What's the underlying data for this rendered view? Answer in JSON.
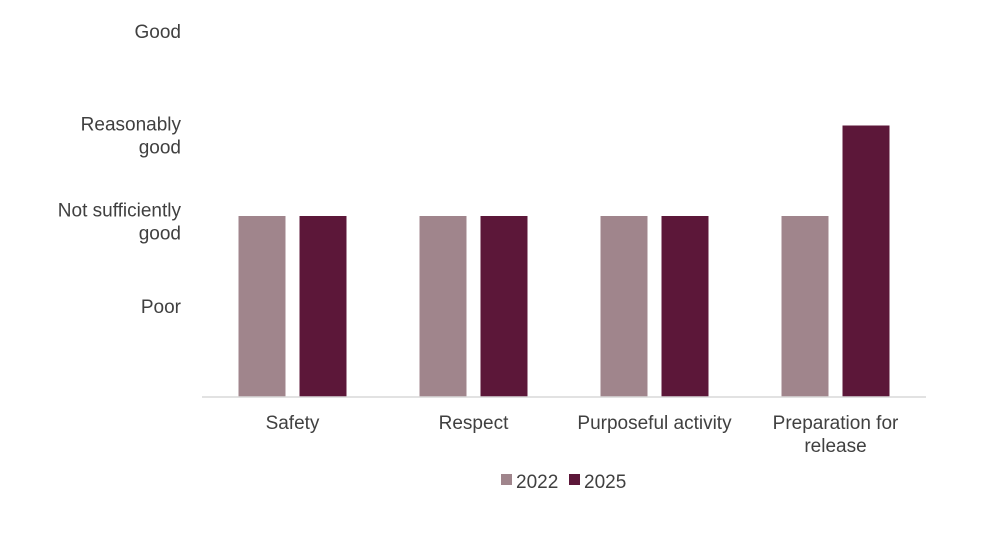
{
  "chart_data": {
    "type": "bar",
    "title": "",
    "xlabel": "",
    "ylabel": "",
    "categories": [
      "Safety",
      "Respect",
      "Purposeful activity",
      "Preparation for release"
    ],
    "category_lines": [
      [
        "Safety"
      ],
      [
        "Respect"
      ],
      [
        "Purposeful activity"
      ],
      [
        "Preparation for",
        "release"
      ]
    ],
    "y_levels": [
      {
        "value": 1,
        "label": "Poor",
        "lines": [
          "Poor"
        ]
      },
      {
        "value": 2,
        "label": "Not sufficiently good",
        "lines": [
          "Not sufficiently",
          "good"
        ]
      },
      {
        "value": 3,
        "label": "Reasonably good",
        "lines": [
          "Reasonably",
          "good"
        ]
      },
      {
        "value": 4,
        "label": "Good",
        "lines": [
          "Good"
        ]
      }
    ],
    "ylim": [
      0,
      4
    ],
    "grid": false,
    "legend_position": "bottom",
    "series": [
      {
        "name": "2022",
        "color": "#a0858c",
        "values": [
          2,
          2,
          2,
          2
        ]
      },
      {
        "name": "2025",
        "color": "#5c1739",
        "values": [
          2,
          2,
          2,
          3
        ]
      }
    ]
  }
}
